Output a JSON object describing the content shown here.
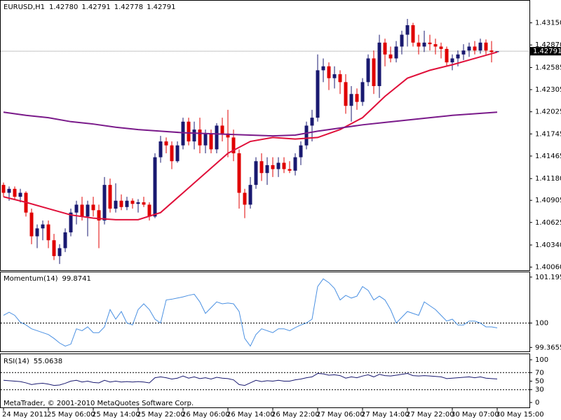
{
  "chart_data": [
    {
      "type": "candlestick",
      "title": "EURUSD,H1",
      "ohlc_labels": [
        "1.42780",
        "1.42791",
        "1.42778",
        "1.42791"
      ],
      "categories": [
        "24 May 2011",
        null,
        null,
        null,
        null,
        null,
        null,
        null,
        "25 May 06:00",
        null,
        null,
        null,
        null,
        null,
        null,
        null,
        "25 May 14:00",
        null,
        null,
        null,
        null,
        null,
        null,
        null,
        "25 May 22:00",
        null,
        null,
        null,
        null,
        null,
        null,
        null,
        "26 May 06:00",
        null,
        null,
        null,
        null,
        null,
        null,
        null,
        "26 May 14:00",
        null,
        null,
        null,
        null,
        null,
        null,
        null,
        "26 May 22:00",
        null,
        null,
        null,
        null,
        null,
        null,
        null,
        "27 May 06:00",
        null,
        null,
        null,
        null,
        null,
        null,
        null,
        "27 May 14:00",
        null,
        null,
        null,
        null,
        null,
        null,
        null,
        "27 May 22:00",
        null,
        null,
        null,
        null,
        null,
        null,
        null,
        "30 May 07:00",
        null,
        null,
        null,
        null,
        null,
        null,
        null,
        "30 May 15:00"
      ],
      "open": [
        1.411,
        1.41,
        1.4105,
        1.4095,
        1.41,
        1.4075,
        1.4045,
        1.4055,
        1.406,
        1.404,
        1.402,
        1.403,
        1.405,
        1.4075,
        1.4085,
        1.407,
        1.4085,
        1.4078,
        1.4065,
        1.411,
        1.408,
        1.409,
        1.4082,
        1.409,
        1.4086,
        1.4088,
        1.4085,
        1.407,
        1.4145,
        1.4165,
        1.416,
        1.414,
        1.416,
        1.419,
        1.4165,
        1.418,
        1.416,
        1.4175,
        1.4155,
        1.4185,
        1.4175,
        1.417,
        1.415,
        1.41,
        1.4085,
        1.411,
        1.414,
        1.4125,
        1.4135,
        1.413,
        1.4138,
        1.413,
        1.4128,
        1.4145,
        1.416,
        1.4185,
        1.4195,
        1.4255,
        1.426,
        1.4245,
        1.425,
        1.424,
        1.421,
        1.4225,
        1.4215,
        1.424,
        1.427,
        1.4235,
        1.429,
        1.4275,
        1.427,
        1.4285,
        1.43,
        1.4312,
        1.429,
        1.4285,
        1.429,
        1.4288,
        1.4285,
        1.4282,
        1.4265,
        1.427,
        1.4275,
        1.428,
        1.4285,
        1.428,
        1.429,
        1.428,
        1.4278
      ],
      "high": [
        1.4113,
        1.4108,
        1.4108,
        1.4105,
        1.4102,
        1.408,
        1.406,
        1.4065,
        1.4065,
        1.4048,
        1.4035,
        1.4055,
        1.408,
        1.409,
        1.4095,
        1.409,
        1.4095,
        1.4085,
        1.412,
        1.4118,
        1.4112,
        1.4098,
        1.4095,
        1.4093,
        1.4092,
        1.4095,
        1.4088,
        1.415,
        1.4172,
        1.417,
        1.4165,
        1.4165,
        1.4195,
        1.4195,
        1.419,
        1.4195,
        1.418,
        1.418,
        1.4188,
        1.4195,
        1.4205,
        1.418,
        1.4155,
        1.4105,
        1.412,
        1.4145,
        1.415,
        1.4145,
        1.4145,
        1.4145,
        1.4145,
        1.414,
        1.415,
        1.4165,
        1.419,
        1.4205,
        1.4275,
        1.427,
        1.4265,
        1.426,
        1.4255,
        1.425,
        1.4235,
        1.4232,
        1.4245,
        1.4275,
        1.428,
        1.43,
        1.4295,
        1.4285,
        1.4292,
        1.4305,
        1.432,
        1.4315,
        1.43,
        1.4305,
        1.43,
        1.4295,
        1.429,
        1.4285,
        1.4275,
        1.428,
        1.4288,
        1.429,
        1.4292,
        1.4295,
        1.4294,
        1.4292,
        1.42791
      ],
      "low": [
        1.4095,
        1.409,
        1.4092,
        1.4088,
        1.407,
        1.4035,
        1.403,
        1.404,
        1.403,
        1.4015,
        1.401,
        1.4025,
        1.4045,
        1.406,
        1.4065,
        1.4045,
        1.407,
        1.403,
        1.406,
        1.4075,
        1.4075,
        1.4078,
        1.4078,
        1.408,
        1.4075,
        1.4082,
        1.4065,
        1.4068,
        1.4138,
        1.415,
        1.413,
        1.4138,
        1.4155,
        1.416,
        1.4155,
        1.415,
        1.415,
        1.415,
        1.415,
        1.4165,
        1.4145,
        1.414,
        1.408,
        1.4068,
        1.408,
        1.4105,
        1.4115,
        1.411,
        1.412,
        1.412,
        1.4125,
        1.4125,
        1.4122,
        1.4135,
        1.4155,
        1.4165,
        1.419,
        1.424,
        1.423,
        1.4232,
        1.4225,
        1.42,
        1.419,
        1.4205,
        1.421,
        1.4235,
        1.4225,
        1.422,
        1.426,
        1.4265,
        1.4265,
        1.4275,
        1.4285,
        1.4285,
        1.4275,
        1.4278,
        1.428,
        1.4275,
        1.427,
        1.426,
        1.4255,
        1.426,
        1.4268,
        1.4272,
        1.4275,
        1.4276,
        1.4275,
        1.4265,
        1.42778
      ],
      "close": [
        1.41,
        1.4105,
        1.4095,
        1.41,
        1.4075,
        1.4045,
        1.4055,
        1.406,
        1.404,
        1.402,
        1.403,
        1.405,
        1.4075,
        1.4085,
        1.407,
        1.4085,
        1.4078,
        1.4065,
        1.411,
        1.408,
        1.409,
        1.4082,
        1.409,
        1.4086,
        1.4088,
        1.4085,
        1.407,
        1.4145,
        1.4165,
        1.416,
        1.414,
        1.416,
        1.419,
        1.4165,
        1.418,
        1.416,
        1.4175,
        1.4155,
        1.4185,
        1.4175,
        1.417,
        1.415,
        1.41,
        1.4085,
        1.411,
        1.414,
        1.4125,
        1.4135,
        1.413,
        1.4138,
        1.413,
        1.4128,
        1.4145,
        1.416,
        1.4185,
        1.4195,
        1.4255,
        1.426,
        1.4245,
        1.425,
        1.424,
        1.421,
        1.4225,
        1.4215,
        1.424,
        1.427,
        1.4235,
        1.429,
        1.4275,
        1.427,
        1.4285,
        1.43,
        1.4312,
        1.429,
        1.4285,
        1.429,
        1.4288,
        1.4285,
        1.4282,
        1.4265,
        1.427,
        1.4275,
        1.428,
        1.4285,
        1.428,
        1.429,
        1.428,
        1.4278,
        1.42791
      ],
      "up_color": "#191970",
      "down_color": "#e00000",
      "overlays": [
        {
          "color": "#e0103a",
          "x": [
            0,
            4,
            8,
            12,
            16,
            20,
            24,
            28,
            32,
            36,
            40,
            44,
            48,
            52,
            56,
            60,
            64,
            68,
            72,
            76,
            80,
            84,
            88
          ],
          "values": [
            1.4095,
            1.4088,
            1.408,
            1.4072,
            1.4068,
            1.4066,
            1.4066,
            1.4075,
            1.41,
            1.4125,
            1.415,
            1.4165,
            1.417,
            1.4168,
            1.417,
            1.418,
            1.4195,
            1.4222,
            1.4245,
            1.4255,
            1.4262,
            1.427,
            1.4278
          ]
        },
        {
          "color": "#7a1a8a",
          "x": [
            0,
            4,
            8,
            12,
            16,
            20,
            24,
            28,
            32,
            36,
            40,
            44,
            48,
            52,
            56,
            60,
            64,
            68,
            72,
            76,
            80,
            84,
            88
          ],
          "values": [
            1.4202,
            1.4198,
            1.4195,
            1.419,
            1.4187,
            1.4183,
            1.418,
            1.4178,
            1.4176,
            1.4175,
            1.4174,
            1.4173,
            1.4172,
            1.4173,
            1.4178,
            1.4182,
            1.4186,
            1.4189,
            1.4192,
            1.4195,
            1.4198,
            1.42,
            1.4202
          ]
        }
      ],
      "ylim": [
        1.4003,
        1.4343
      ],
      "yticks": [
        {
          "value": 1.4315,
          "label": "1.43150"
        },
        {
          "value": 1.4287,
          "label": "1.42870"
        },
        {
          "value": 1.42585,
          "label": "1.42585"
        },
        {
          "value": 1.42305,
          "label": "1.42305"
        },
        {
          "value": 1.42025,
          "label": "1.42025"
        },
        {
          "value": 1.41745,
          "label": "1.41745"
        },
        {
          "value": 1.41465,
          "label": "1.41465"
        },
        {
          "value": 1.4118,
          "label": "1.41180"
        },
        {
          "value": 1.40905,
          "label": "1.40905"
        },
        {
          "value": 1.40625,
          "label": "1.40625"
        },
        {
          "value": 1.4034,
          "label": "1.40340"
        },
        {
          "value": 1.4006,
          "label": "1.40060"
        }
      ]
    },
    {
      "type": "line",
      "title": "Momentum(14)",
      "color": "#4a90e2",
      "values": [
        100.2,
        100.28,
        100.2,
        100.02,
        99.95,
        99.85,
        99.8,
        99.75,
        99.7,
        99.6,
        99.48,
        99.4,
        99.45,
        99.85,
        99.8,
        99.9,
        99.75,
        99.75,
        99.9,
        100.35,
        100.1,
        100.3,
        100.0,
        99.95,
        100.35,
        100.5,
        100.35,
        100.1,
        100.0,
        100.6,
        100.62,
        100.65,
        100.68,
        100.72,
        100.75,
        100.55,
        100.25,
        100.4,
        100.55,
        100.5,
        100.52,
        100.5,
        100.3,
        99.6,
        99.4,
        99.7,
        99.85,
        99.8,
        99.75,
        99.85,
        99.85,
        99.8,
        99.88,
        99.95,
        100.0,
        100.1,
        100.95,
        101.15,
        101.05,
        100.9,
        100.6,
        100.72,
        100.65,
        100.7,
        100.95,
        100.85,
        100.6,
        100.7,
        100.6,
        100.35,
        100.0,
        100.15,
        100.3,
        100.25,
        100.2,
        100.55,
        100.45,
        100.35,
        100.2,
        100.05,
        100.1,
        99.95,
        99.95,
        100.05,
        100.05,
        100.0,
        99.9,
        99.9,
        99.8741
      ],
      "levels": [
        100
      ],
      "ylim": [
        99.28,
        101.32
      ],
      "yticks": [
        101.1955,
        100,
        99.3655
      ]
    },
    {
      "type": "line",
      "title": "RSI(14)",
      "color": "#191970",
      "values": [
        52,
        51,
        50,
        49,
        46,
        42,
        44,
        45,
        43,
        40,
        41,
        45,
        50,
        52,
        48,
        50,
        47,
        46,
        52,
        48,
        50,
        48,
        49,
        48,
        49,
        48,
        46,
        58,
        60,
        58,
        55,
        57,
        62,
        57,
        60,
        56,
        58,
        55,
        59,
        57,
        56,
        53,
        42,
        40,
        46,
        52,
        49,
        51,
        50,
        52,
        50,
        50,
        53,
        55,
        58,
        60,
        68,
        67,
        64,
        65,
        63,
        57,
        60,
        58,
        62,
        65,
        60,
        66,
        63,
        62,
        64,
        66,
        68,
        63,
        62,
        63,
        62,
        61,
        60,
        56,
        57,
        58,
        59,
        60,
        58,
        60,
        57,
        56,
        55.0638
      ],
      "levels": [
        30,
        70
      ],
      "ylim": [
        0,
        100
      ],
      "yticks": [
        100,
        70,
        50,
        30,
        0
      ],
      "annotation": "MetaTrader, © 2001-2010 MetaQuotes Software Corp."
    }
  ]
}
